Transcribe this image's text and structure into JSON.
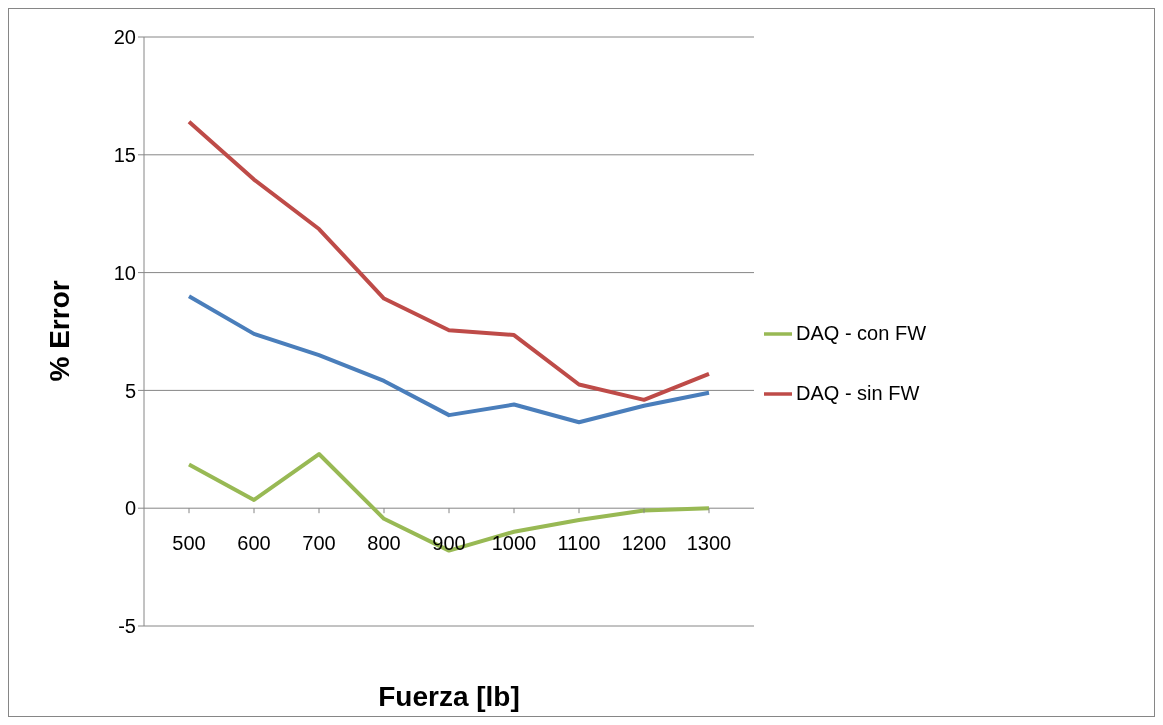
{
  "chart_data": {
    "type": "line",
    "xlabel": "Fuerza [lb]",
    "ylabel": "% Error",
    "categories": [
      "500",
      "600",
      "700",
      "800",
      "900",
      "1000",
      "1100",
      "1200",
      "1300"
    ],
    "series": [
      {
        "color": "#4a7ebb",
        "values": [
          9.0,
          7.4,
          6.5,
          5.4,
          3.95,
          4.4,
          3.65,
          4.35,
          4.9
        ]
      },
      {
        "name": "DAQ - sin FW",
        "color": "#be4b48",
        "values": [
          16.4,
          13.95,
          11.85,
          8.9,
          7.55,
          7.35,
          5.25,
          4.6,
          5.7
        ]
      },
      {
        "name": "DAQ - con FW",
        "color": "#98b954",
        "values": [
          1.85,
          0.35,
          2.3,
          -0.45,
          -1.8,
          -1.0,
          -0.5,
          -0.1,
          0
        ]
      }
    ],
    "ylim": [
      -5,
      20
    ],
    "yticks": [
      -5,
      0,
      5,
      10,
      15,
      20
    ],
    "grid": "y",
    "legend": "right",
    "marker": "none",
    "line_style": "solid"
  }
}
